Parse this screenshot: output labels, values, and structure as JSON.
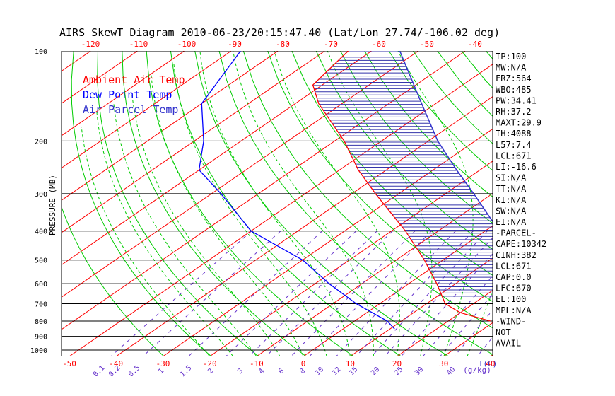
{
  "chart_data": {
    "type": "line",
    "title": "AIRS SkewT Diagram 2010-06-23/20:15:47.40 (Lat/Lon 27.74/-106.02 deg)",
    "ylabel": "PRESSURE (MB)",
    "xlabel": "T(C)",
    "mixing_ratio_unit": "(g/kg)",
    "pressure_ticks": [
      100,
      200,
      300,
      400,
      500,
      600,
      700,
      800,
      900,
      1000
    ],
    "bottom_temp_ticks": [
      -50,
      -40,
      -30,
      -20,
      -10,
      0,
      10,
      20,
      30,
      40
    ],
    "top_temp_ticks": [
      -120,
      -110,
      -100,
      -90,
      -80,
      -70,
      -60,
      -50,
      -40
    ],
    "mixing_ratio_labels": [
      "0.1",
      "0.2",
      "0.5",
      "1",
      "1.5",
      "2",
      "3",
      "4",
      "6",
      "8",
      "10",
      "12",
      "15",
      "20",
      "25",
      "30",
      "40"
    ],
    "legend": [
      {
        "name": "Ambient Air Temp",
        "color": "#ff0000"
      },
      {
        "name": "Dew Point Temp",
        "color": "#0000ff"
      },
      {
        "name": "Air Parcel Temp",
        "color": "#3333cc"
      }
    ],
    "legend_position": "top-left",
    "grid": true,
    "ambient_temp": [
      {
        "p": 100,
        "t": -85
      },
      {
        "p": 130,
        "t": -82
      },
      {
        "p": 150,
        "t": -75
      },
      {
        "p": 200,
        "t": -58
      },
      {
        "p": 250,
        "t": -46
      },
      {
        "p": 300,
        "t": -35
      },
      {
        "p": 400,
        "t": -17
      },
      {
        "p": 500,
        "t": -4
      },
      {
        "p": 600,
        "t": 6
      },
      {
        "p": 700,
        "t": 14
      },
      {
        "p": 750,
        "t": 20
      },
      {
        "p": 800,
        "t": 29
      }
    ],
    "dew_point": [
      {
        "p": 100,
        "t": -108
      },
      {
        "p": 150,
        "t": -100
      },
      {
        "p": 200,
        "t": -88
      },
      {
        "p": 250,
        "t": -80
      },
      {
        "p": 300,
        "t": -68
      },
      {
        "p": 400,
        "t": -50
      },
      {
        "p": 500,
        "t": -30
      },
      {
        "p": 600,
        "t": -17
      },
      {
        "p": 700,
        "t": -5
      },
      {
        "p": 800,
        "t": 7
      },
      {
        "p": 850,
        "t": 11
      }
    ],
    "parcel_temp": [
      {
        "p": 100,
        "t": -74
      },
      {
        "p": 150,
        "t": -53
      },
      {
        "p": 200,
        "t": -38
      },
      {
        "p": 250,
        "t": -25
      },
      {
        "p": 300,
        "t": -14
      },
      {
        "p": 400,
        "t": 3
      },
      {
        "p": 500,
        "t": 15
      },
      {
        "p": 600,
        "t": 23
      },
      {
        "p": 670,
        "t": 29
      },
      {
        "p": 700,
        "t": 31
      },
      {
        "p": 780,
        "t": 38
      }
    ],
    "indices": [
      "TP:100",
      "MW:N/A",
      "FRZ:564",
      "WBO:485",
      "PW:34.41",
      "RH:37.2",
      "MAXT:29.9",
      "TH:4088",
      "L57:7.4",
      "LCL:671",
      "LI:-16.6",
      "SI:N/A",
      "TT:N/A",
      "KI:N/A",
      "SW:N/A",
      "EI:N/A",
      "-PARCEL-",
      "CAPE:10342",
      "CINH:382",
      "LCL:671",
      "CAP:0.0",
      "LFC:670",
      "EL:100",
      "MPL:N/A",
      "-WIND-",
      "NOT",
      "AVAIL"
    ]
  }
}
